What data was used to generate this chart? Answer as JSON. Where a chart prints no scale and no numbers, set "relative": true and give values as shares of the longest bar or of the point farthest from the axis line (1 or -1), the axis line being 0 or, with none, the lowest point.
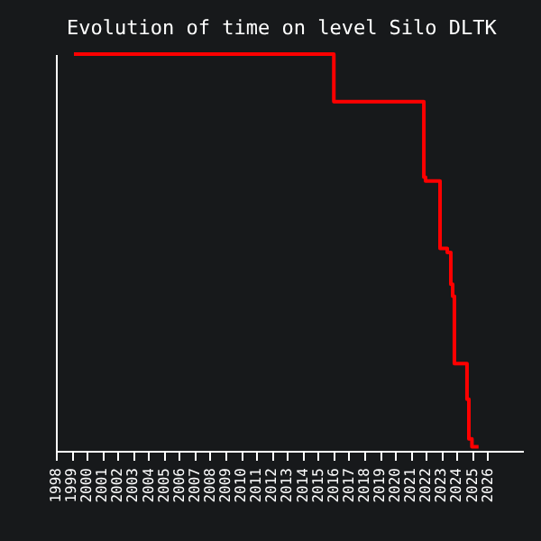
{
  "chart_data": {
    "type": "step",
    "title": "Evolution of time on level Silo DLTK",
    "relative": true,
    "x": [
      1999.17,
      2016.03,
      2021.87,
      2021.98,
      2022.92,
      2023.39,
      2023.62,
      2023.74,
      2023.85,
      2024.67,
      2024.79,
      2024.99,
      2025.42
    ],
    "series": [
      {
        "color": "#ff0000",
        "values": [
          1.0,
          0.88,
          0.69,
          0.68,
          0.51,
          0.5,
          0.42,
          0.39,
          0.22,
          0.13,
          0.03,
          0.01,
          0.01
        ]
      }
    ],
    "xlim": [
      1998,
      2028.3
    ],
    "xticks": [
      1998,
      1999,
      2000,
      2001,
      2002,
      2003,
      2004,
      2005,
      2006,
      2007,
      2008,
      2009,
      2010,
      2011,
      2012,
      2013,
      2014,
      2015,
      2016,
      2017,
      2018,
      2019,
      2020,
      2021,
      2022,
      2023,
      2024,
      2025,
      2026
    ]
  }
}
